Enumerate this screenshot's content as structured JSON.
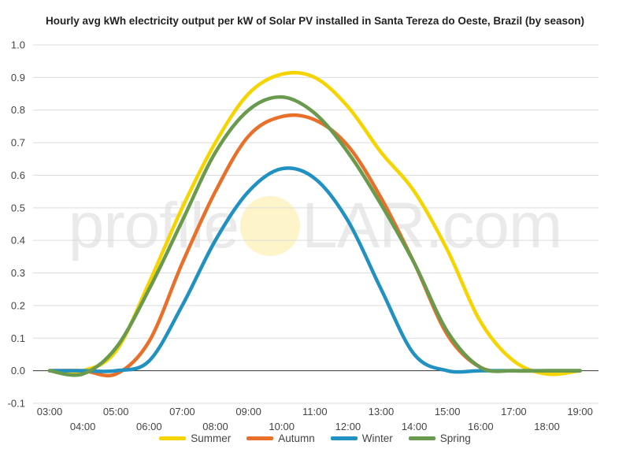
{
  "watermark": {
    "left": "profile",
    "right": "LAR.com"
  },
  "chart_data": {
    "type": "line",
    "title": "Hourly avg kWh electricity output per kW of Solar PV installed in Santa Tereza do Oeste, Brazil (by season)",
    "xlabel": "",
    "ylabel": "",
    "ylim": [
      -0.1,
      1.0
    ],
    "yticks": [
      "-0.1",
      "0.0",
      "0.1",
      "0.2",
      "0.3",
      "0.4",
      "0.5",
      "0.6",
      "0.7",
      "0.8",
      "0.9",
      "1.0"
    ],
    "x": [
      "03:00",
      "04:00",
      "05:00",
      "06:00",
      "07:00",
      "08:00",
      "09:00",
      "10:00",
      "11:00",
      "12:00",
      "13:00",
      "14:00",
      "15:00",
      "16:00",
      "17:00",
      "18:00",
      "19:00"
    ],
    "grid": true,
    "legend_position": "bottom",
    "series": [
      {
        "name": "Summer",
        "color": "#F5D400",
        "values": [
          0.0,
          0.0,
          0.06,
          0.27,
          0.5,
          0.7,
          0.85,
          0.91,
          0.9,
          0.81,
          0.67,
          0.55,
          0.37,
          0.15,
          0.03,
          -0.01,
          0.0
        ]
      },
      {
        "name": "Autumn",
        "color": "#E8702A",
        "values": [
          0.0,
          0.0,
          -0.01,
          0.09,
          0.33,
          0.55,
          0.72,
          0.78,
          0.77,
          0.69,
          0.53,
          0.33,
          0.11,
          0.01,
          0.0,
          0.0,
          0.0
        ]
      },
      {
        "name": "Winter",
        "color": "#2191C2",
        "values": [
          0.0,
          0.0,
          0.0,
          0.03,
          0.2,
          0.4,
          0.55,
          0.62,
          0.59,
          0.46,
          0.25,
          0.05,
          0.0,
          0.0,
          0.0,
          0.0,
          0.0
        ]
      },
      {
        "name": "Spring",
        "color": "#6A9A4E",
        "values": [
          0.0,
          -0.01,
          0.07,
          0.25,
          0.46,
          0.67,
          0.8,
          0.84,
          0.79,
          0.67,
          0.51,
          0.33,
          0.12,
          0.01,
          0.0,
          0.0,
          0.0
        ]
      }
    ]
  }
}
